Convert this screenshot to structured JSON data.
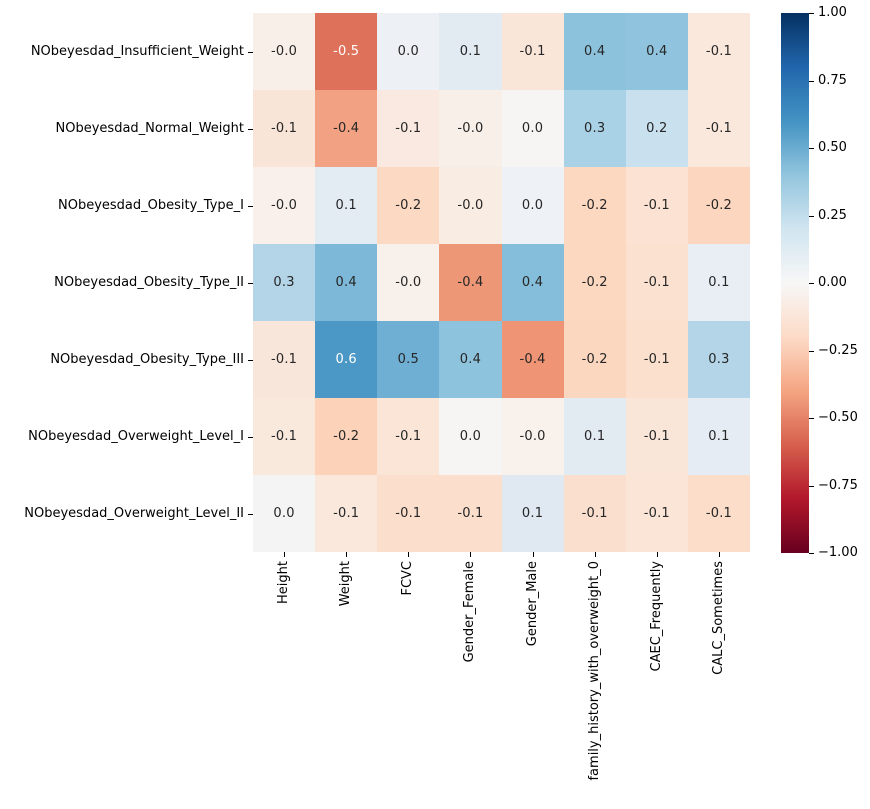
{
  "figure": {
    "background_color": "#ffffff"
  },
  "chart_data": {
    "type": "heatmap",
    "title": "",
    "xlabel": "",
    "ylabel": "",
    "colormap": "RdBu",
    "vmin": -1.0,
    "vmax": 1.0,
    "grid": false,
    "rows": [
      "NObeyesdad_Insufficient_Weight",
      "NObeyesdad_Normal_Weight",
      "NObeyesdad_Obesity_Type_I",
      "NObeyesdad_Obesity_Type_II",
      "NObeyesdad_Obesity_Type_III",
      "NObeyesdad_Overweight_Level_I",
      "NObeyesdad_Overweight_Level_II"
    ],
    "columns": [
      "Height",
      "Weight",
      "FCVC",
      "Gender_Female",
      "Gender_Male",
      "family_history_with_overweight_0",
      "CAEC_Frequently",
      "CALC_Sometimes"
    ],
    "cells": [
      [
        {
          "v": "-0.0",
          "c": "#f9efe9",
          "tc": "dark"
        },
        {
          "v": "-0.5",
          "c": "#de715a",
          "tc": "light"
        },
        {
          "v": "0.0",
          "c": "#edf1f6",
          "tc": "dark"
        },
        {
          "v": "0.1",
          "c": "#e2eaf2",
          "tc": "dark"
        },
        {
          "v": "-0.1",
          "c": "#fae6d9",
          "tc": "dark"
        },
        {
          "v": "0.4",
          "c": "#8dc2dd",
          "tc": "dark"
        },
        {
          "v": "0.4",
          "c": "#90c4de",
          "tc": "dark"
        },
        {
          "v": "-0.1",
          "c": "#fae8dd",
          "tc": "dark"
        }
      ],
      [
        {
          "v": "-0.1",
          "c": "#f9e5d7",
          "tc": "dark"
        },
        {
          "v": "-0.4",
          "c": "#f2a183",
          "tc": "dark"
        },
        {
          "v": "-0.1",
          "c": "#fae9e0",
          "tc": "dark"
        },
        {
          "v": "-0.0",
          "c": "#f8efe9",
          "tc": "dark"
        },
        {
          "v": "0.0",
          "c": "#f6f5f4",
          "tc": "dark"
        },
        {
          "v": "0.3",
          "c": "#aad2e6",
          "tc": "dark"
        },
        {
          "v": "0.2",
          "c": "#c9e0ee",
          "tc": "dark"
        },
        {
          "v": "-0.1",
          "c": "#fae8dc",
          "tc": "dark"
        }
      ],
      [
        {
          "v": "-0.0",
          "c": "#f9f0eb",
          "tc": "dark"
        },
        {
          "v": "0.1",
          "c": "#e3ebf3",
          "tc": "dark"
        },
        {
          "v": "-0.2",
          "c": "#fcd9c2",
          "tc": "dark"
        },
        {
          "v": "-0.0",
          "c": "#f9ece2",
          "tc": "dark"
        },
        {
          "v": "0.0",
          "c": "#eef2f6",
          "tc": "dark"
        },
        {
          "v": "-0.2",
          "c": "#fcd8c1",
          "tc": "dark"
        },
        {
          "v": "-0.1",
          "c": "#fbe2d2",
          "tc": "dark"
        },
        {
          "v": "-0.2",
          "c": "#fcd6be",
          "tc": "dark"
        }
      ],
      [
        {
          "v": "0.3",
          "c": "#b3d5e7",
          "tc": "dark"
        },
        {
          "v": "0.4",
          "c": "#7db8d8",
          "tc": "dark"
        },
        {
          "v": "-0.0",
          "c": "#f8f0eb",
          "tc": "dark"
        },
        {
          "v": "-0.4",
          "c": "#ee9777",
          "tc": "dark"
        },
        {
          "v": "0.4",
          "c": "#85beda",
          "tc": "dark"
        },
        {
          "v": "-0.2",
          "c": "#fcd8c1",
          "tc": "dark"
        },
        {
          "v": "-0.1",
          "c": "#fbe1d0",
          "tc": "dark"
        },
        {
          "v": "0.1",
          "c": "#e8eef4",
          "tc": "dark"
        }
      ],
      [
        {
          "v": "-0.1",
          "c": "#f9e6da",
          "tc": "dark"
        },
        {
          "v": "0.6",
          "c": "#4b98c6",
          "tc": "light"
        },
        {
          "v": "0.5",
          "c": "#6fafd3",
          "tc": "dark"
        },
        {
          "v": "0.4",
          "c": "#8ec3de",
          "tc": "dark"
        },
        {
          "v": "-0.4",
          "c": "#ef9576",
          "tc": "dark"
        },
        {
          "v": "-0.2",
          "c": "#fcd7c0",
          "tc": "dark"
        },
        {
          "v": "-0.1",
          "c": "#fbe0ce",
          "tc": "dark"
        },
        {
          "v": "0.3",
          "c": "#b3d5e7",
          "tc": "dark"
        }
      ],
      [
        {
          "v": "-0.1",
          "c": "#f9e8dc",
          "tc": "dark"
        },
        {
          "v": "-0.2",
          "c": "#fcd2b8",
          "tc": "dark"
        },
        {
          "v": "-0.1",
          "c": "#fae5d6",
          "tc": "dark"
        },
        {
          "v": "0.0",
          "c": "#f6f5f4",
          "tc": "dark"
        },
        {
          "v": "-0.0",
          "c": "#f8f1ec",
          "tc": "dark"
        },
        {
          "v": "0.1",
          "c": "#e2eaf2",
          "tc": "dark"
        },
        {
          "v": "-0.1",
          "c": "#f9e6d9",
          "tc": "dark"
        },
        {
          "v": "0.1",
          "c": "#e5ecf3",
          "tc": "dark"
        }
      ],
      [
        {
          "v": "0.0",
          "c": "#f4f4f4",
          "tc": "dark"
        },
        {
          "v": "-0.1",
          "c": "#f9e8db",
          "tc": "dark"
        },
        {
          "v": "-0.1",
          "c": "#fbdfcc",
          "tc": "dark"
        },
        {
          "v": "-0.1",
          "c": "#fbdfcc",
          "tc": "dark"
        },
        {
          "v": "0.1",
          "c": "#e0e8f1",
          "tc": "dark"
        },
        {
          "v": "-0.1",
          "c": "#fbdfce",
          "tc": "dark"
        },
        {
          "v": "-0.1",
          "c": "#fae5d7",
          "tc": "dark"
        },
        {
          "v": "-0.1",
          "c": "#fbddc9",
          "tc": "dark"
        }
      ]
    ],
    "annotation_colors": {
      "dark": "#262626",
      "light": "#ffffff"
    },
    "colorbar": {
      "tick_labels": [
        "1.00",
        "0.75",
        "0.50",
        "0.25",
        "0.00",
        "−0.25",
        "−0.50",
        "−0.75",
        "−1.00"
      ],
      "gradient_stops_bottom_to_top": [
        "#67001f",
        "#b2182b",
        "#d6604d",
        "#f4a582",
        "#fddbc7",
        "#f7f7f7",
        "#d1e5f0",
        "#92c5de",
        "#4393c3",
        "#2166ac",
        "#053061"
      ]
    }
  }
}
